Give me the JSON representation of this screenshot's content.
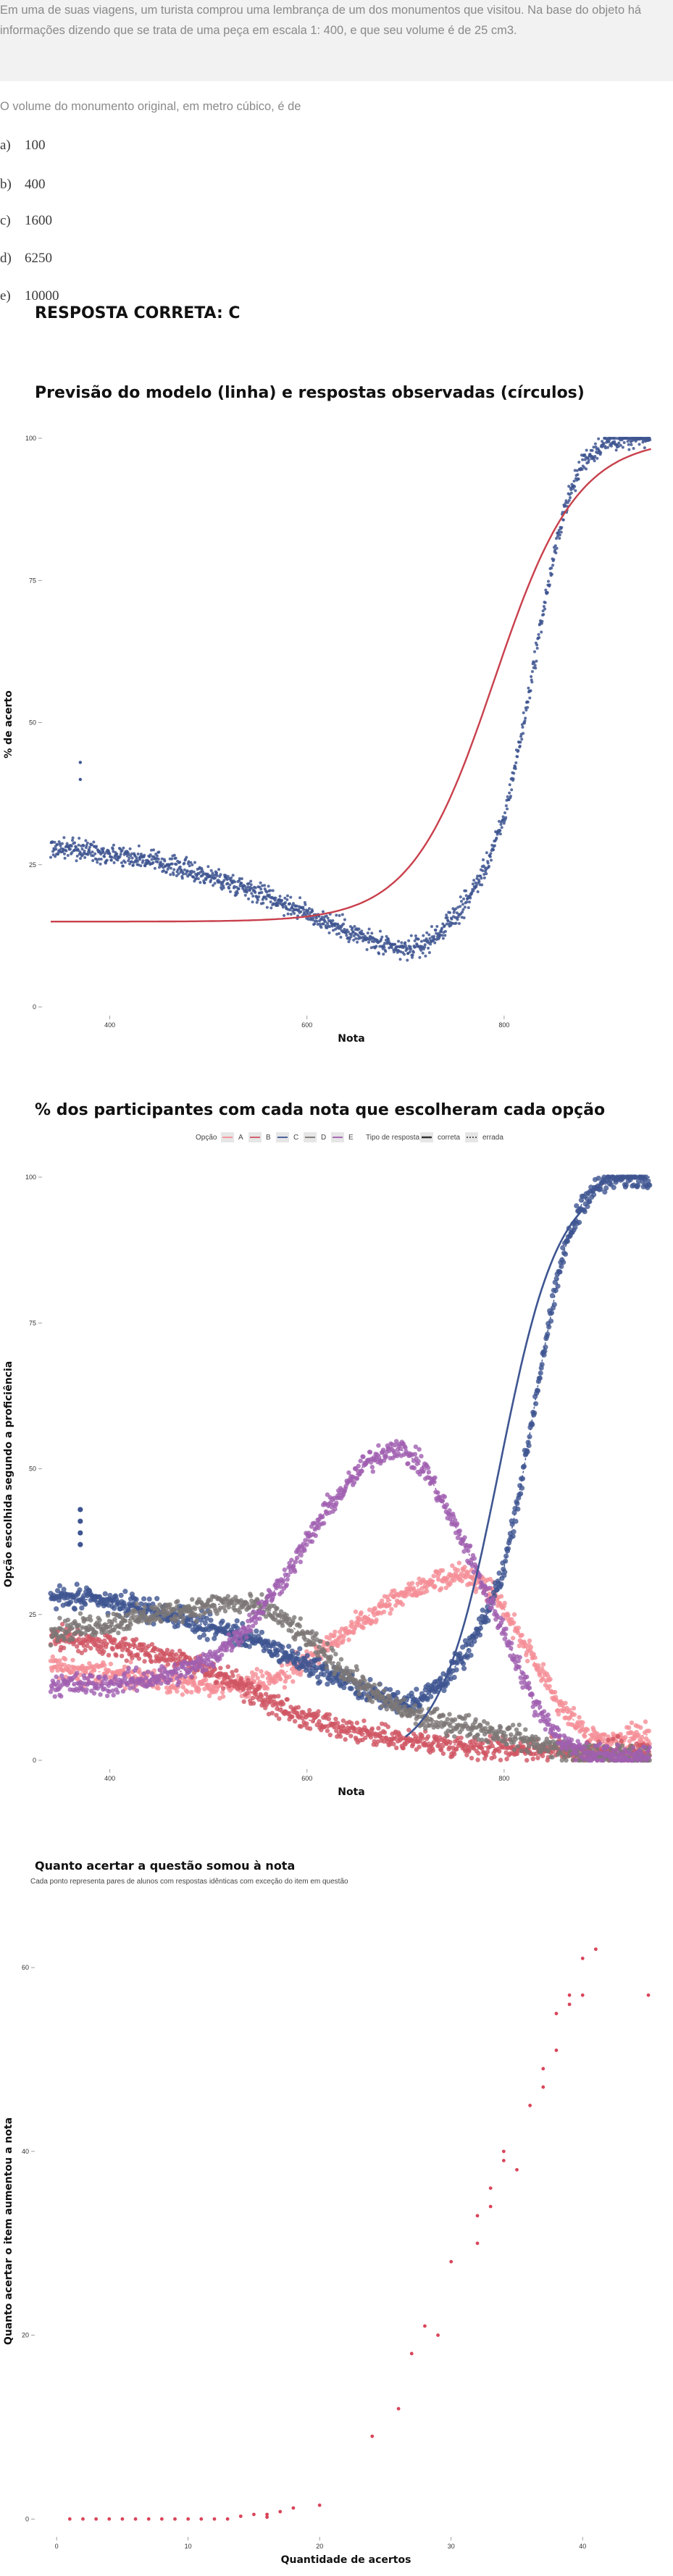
{
  "question": {
    "text": "Em uma de suas viagens, um turista comprou uma lembrança de um dos monumentos que visitou. Na base do objeto há informações dizendo que se trata de uma peça em escala 1: 400, e que seu volume é de 25 cm3.",
    "prompt": "O volume do monumento original, em metro cúbico, é de",
    "options": [
      {
        "letter": "a)",
        "value": "100"
      },
      {
        "letter": "b)",
        "value": "400"
      },
      {
        "letter": "c)",
        "value": "1600"
      },
      {
        "letter": "d)",
        "value": "6250"
      },
      {
        "letter": "e)",
        "value": "10000"
      }
    ],
    "answer": "RESPOSTA CORRETA: C"
  },
  "colors": {
    "A": "#f58d96",
    "B": "#d05563",
    "C": "#3e5591",
    "D": "#7c7775",
    "E": "#a05fb0",
    "model": "#c8404c",
    "obs": "#3e5591",
    "gain": "#d9455a"
  },
  "chart_data": [
    {
      "type": "line",
      "title": "Previsão do modelo (linha) e respostas observadas (círculos)",
      "xlabel": "Nota",
      "ylabel": "% de acerto",
      "xticks": [
        400,
        600,
        800
      ],
      "yticks": [
        0,
        25,
        50,
        75,
        100
      ],
      "xlim": [
        340,
        950
      ],
      "ylim": [
        0,
        100
      ],
      "model": {
        "lower": 15,
        "upper": 100,
        "mid": 790,
        "scale": 42
      },
      "observed": [
        [
          340,
          28
        ],
        [
          380,
          27.5
        ],
        [
          420,
          26.5
        ],
        [
          460,
          25
        ],
        [
          500,
          23
        ],
        [
          540,
          21
        ],
        [
          580,
          18
        ],
        [
          620,
          15
        ],
        [
          660,
          12
        ],
        [
          680,
          10.5
        ],
        [
          700,
          10
        ],
        [
          720,
          11
        ],
        [
          740,
          14
        ],
        [
          760,
          18
        ],
        [
          780,
          24
        ],
        [
          800,
          33
        ],
        [
          820,
          50
        ],
        [
          840,
          70
        ],
        [
          860,
          87
        ],
        [
          880,
          96
        ],
        [
          900,
          99
        ],
        [
          920,
          100
        ],
        [
          950,
          100
        ]
      ],
      "outliers": [
        [
          370,
          43
        ],
        [
          370,
          40
        ]
      ]
    },
    {
      "type": "line",
      "title": "% dos participantes com cada nota que escolheram cada opção",
      "xlabel": "Nota",
      "ylabel": "Opção escolhida segundo a proficiência",
      "xticks": [
        400,
        600,
        800
      ],
      "yticks": [
        0,
        25,
        50,
        75,
        100
      ],
      "xlim": [
        340,
        950
      ],
      "ylim": [
        0,
        100
      ],
      "legend": {
        "option_title": "Opção",
        "options": [
          "A",
          "B",
          "C",
          "D",
          "E"
        ],
        "type_title": "Tipo de resposta",
        "types": [
          "correta",
          "errada"
        ]
      },
      "series": [
        {
          "name": "A",
          "correct": false,
          "points": [
            [
              340,
              16
            ],
            [
              400,
              15
            ],
            [
              460,
              13.5
            ],
            [
              520,
              12.5
            ],
            [
              560,
              13.5
            ],
            [
              600,
              17
            ],
            [
              640,
              22
            ],
            [
              680,
              27
            ],
            [
              720,
              30.5
            ],
            [
              760,
              32
            ],
            [
              790,
              29
            ],
            [
              820,
              20
            ],
            [
              850,
              11
            ],
            [
              880,
              5
            ],
            [
              900,
              3
            ],
            [
              930,
              4
            ],
            [
              950,
              4.5
            ]
          ]
        },
        {
          "name": "B",
          "correct": false,
          "points": [
            [
              340,
              21
            ],
            [
              400,
              20
            ],
            [
              460,
              18
            ],
            [
              520,
              14
            ],
            [
              560,
              10
            ],
            [
              600,
              7
            ],
            [
              640,
              5
            ],
            [
              700,
              3.5
            ],
            [
              760,
              2.5
            ],
            [
              820,
              2
            ],
            [
              880,
              1.5
            ],
            [
              950,
              1.5
            ]
          ]
        },
        {
          "name": "C",
          "correct": true,
          "points": [
            [
              340,
              28
            ],
            [
              380,
              27.5
            ],
            [
              420,
              26.5
            ],
            [
              460,
              25
            ],
            [
              500,
              23
            ],
            [
              540,
              21
            ],
            [
              580,
              18
            ],
            [
              620,
              15
            ],
            [
              660,
              12
            ],
            [
              680,
              10.5
            ],
            [
              700,
              10
            ],
            [
              720,
              11
            ],
            [
              740,
              14
            ],
            [
              760,
              18
            ],
            [
              780,
              24
            ],
            [
              800,
              33
            ],
            [
              820,
              50
            ],
            [
              840,
              70
            ],
            [
              860,
              87
            ],
            [
              880,
              96
            ],
            [
              900,
              99
            ],
            [
              920,
              100
            ],
            [
              950,
              100
            ]
          ]
        },
        {
          "name": "D",
          "correct": false,
          "points": [
            [
              340,
              22
            ],
            [
              400,
              23.5
            ],
            [
              460,
              25.5
            ],
            [
              520,
              27
            ],
            [
              560,
              26
            ],
            [
              600,
              21
            ],
            [
              640,
              15
            ],
            [
              680,
              10
            ],
            [
              720,
              7
            ],
            [
              760,
              6
            ],
            [
              800,
              4.5
            ],
            [
              840,
              2.5
            ],
            [
              880,
              1
            ],
            [
              950,
              0.5
            ]
          ]
        },
        {
          "name": "E",
          "correct": false,
          "points": [
            [
              340,
              13
            ],
            [
              400,
              13
            ],
            [
              460,
              14.5
            ],
            [
              500,
              17
            ],
            [
              540,
              23
            ],
            [
              580,
              32
            ],
            [
              620,
              43
            ],
            [
              660,
              51
            ],
            [
              690,
              54
            ],
            [
              720,
              50
            ],
            [
              760,
              37
            ],
            [
              800,
              22
            ],
            [
              830,
              10
            ],
            [
              860,
              3
            ],
            [
              890,
              1
            ],
            [
              950,
              0.5
            ]
          ]
        }
      ],
      "correct_model": {
        "lower": 0,
        "upper": 100,
        "mid": 795,
        "scale": 30
      },
      "outliers": [
        [
          370,
          43
        ],
        [
          370,
          41
        ],
        [
          370,
          39
        ],
        [
          370,
          37
        ]
      ]
    },
    {
      "type": "scatter",
      "title": "Quanto acertar a questão somou à nota",
      "subtitle": "Cada ponto representa pares de alunos com respostas idênticas com exceção do item em questão",
      "xlabel": "Quantidade de acertos",
      "ylabel": "Quanto acertar o item aumentou a nota",
      "xticks": [
        0,
        10,
        20,
        30,
        40
      ],
      "yticks": [
        0,
        20,
        40,
        60
      ],
      "xlim": [
        -1,
        45
      ],
      "ylim": [
        -1,
        66
      ],
      "points": [
        [
          1,
          0
        ],
        [
          2,
          0
        ],
        [
          3,
          0
        ],
        [
          4,
          0
        ],
        [
          5,
          0
        ],
        [
          6,
          0
        ],
        [
          7,
          0
        ],
        [
          8,
          0
        ],
        [
          9,
          0
        ],
        [
          10,
          0
        ],
        [
          11,
          0
        ],
        [
          12,
          0
        ],
        [
          13,
          0
        ],
        [
          14,
          0.3
        ],
        [
          15,
          0.5
        ],
        [
          16,
          0.5
        ],
        [
          16,
          0.2
        ],
        [
          17,
          0.8
        ],
        [
          18,
          1.2
        ],
        [
          20,
          1.5
        ],
        [
          24,
          9
        ],
        [
          26,
          12
        ],
        [
          27,
          18
        ],
        [
          28,
          21
        ],
        [
          29,
          20
        ],
        [
          30,
          28
        ],
        [
          32,
          30
        ],
        [
          32,
          33
        ],
        [
          33,
          34
        ],
        [
          33,
          36
        ],
        [
          34,
          39
        ],
        [
          34,
          40
        ],
        [
          35,
          38
        ],
        [
          36,
          45
        ],
        [
          37,
          49
        ],
        [
          37,
          47
        ],
        [
          38,
          51
        ],
        [
          38,
          55
        ],
        [
          39,
          57
        ],
        [
          39,
          56
        ],
        [
          40,
          57
        ],
        [
          40,
          61
        ],
        [
          41,
          62
        ],
        [
          45,
          57
        ]
      ]
    }
  ]
}
